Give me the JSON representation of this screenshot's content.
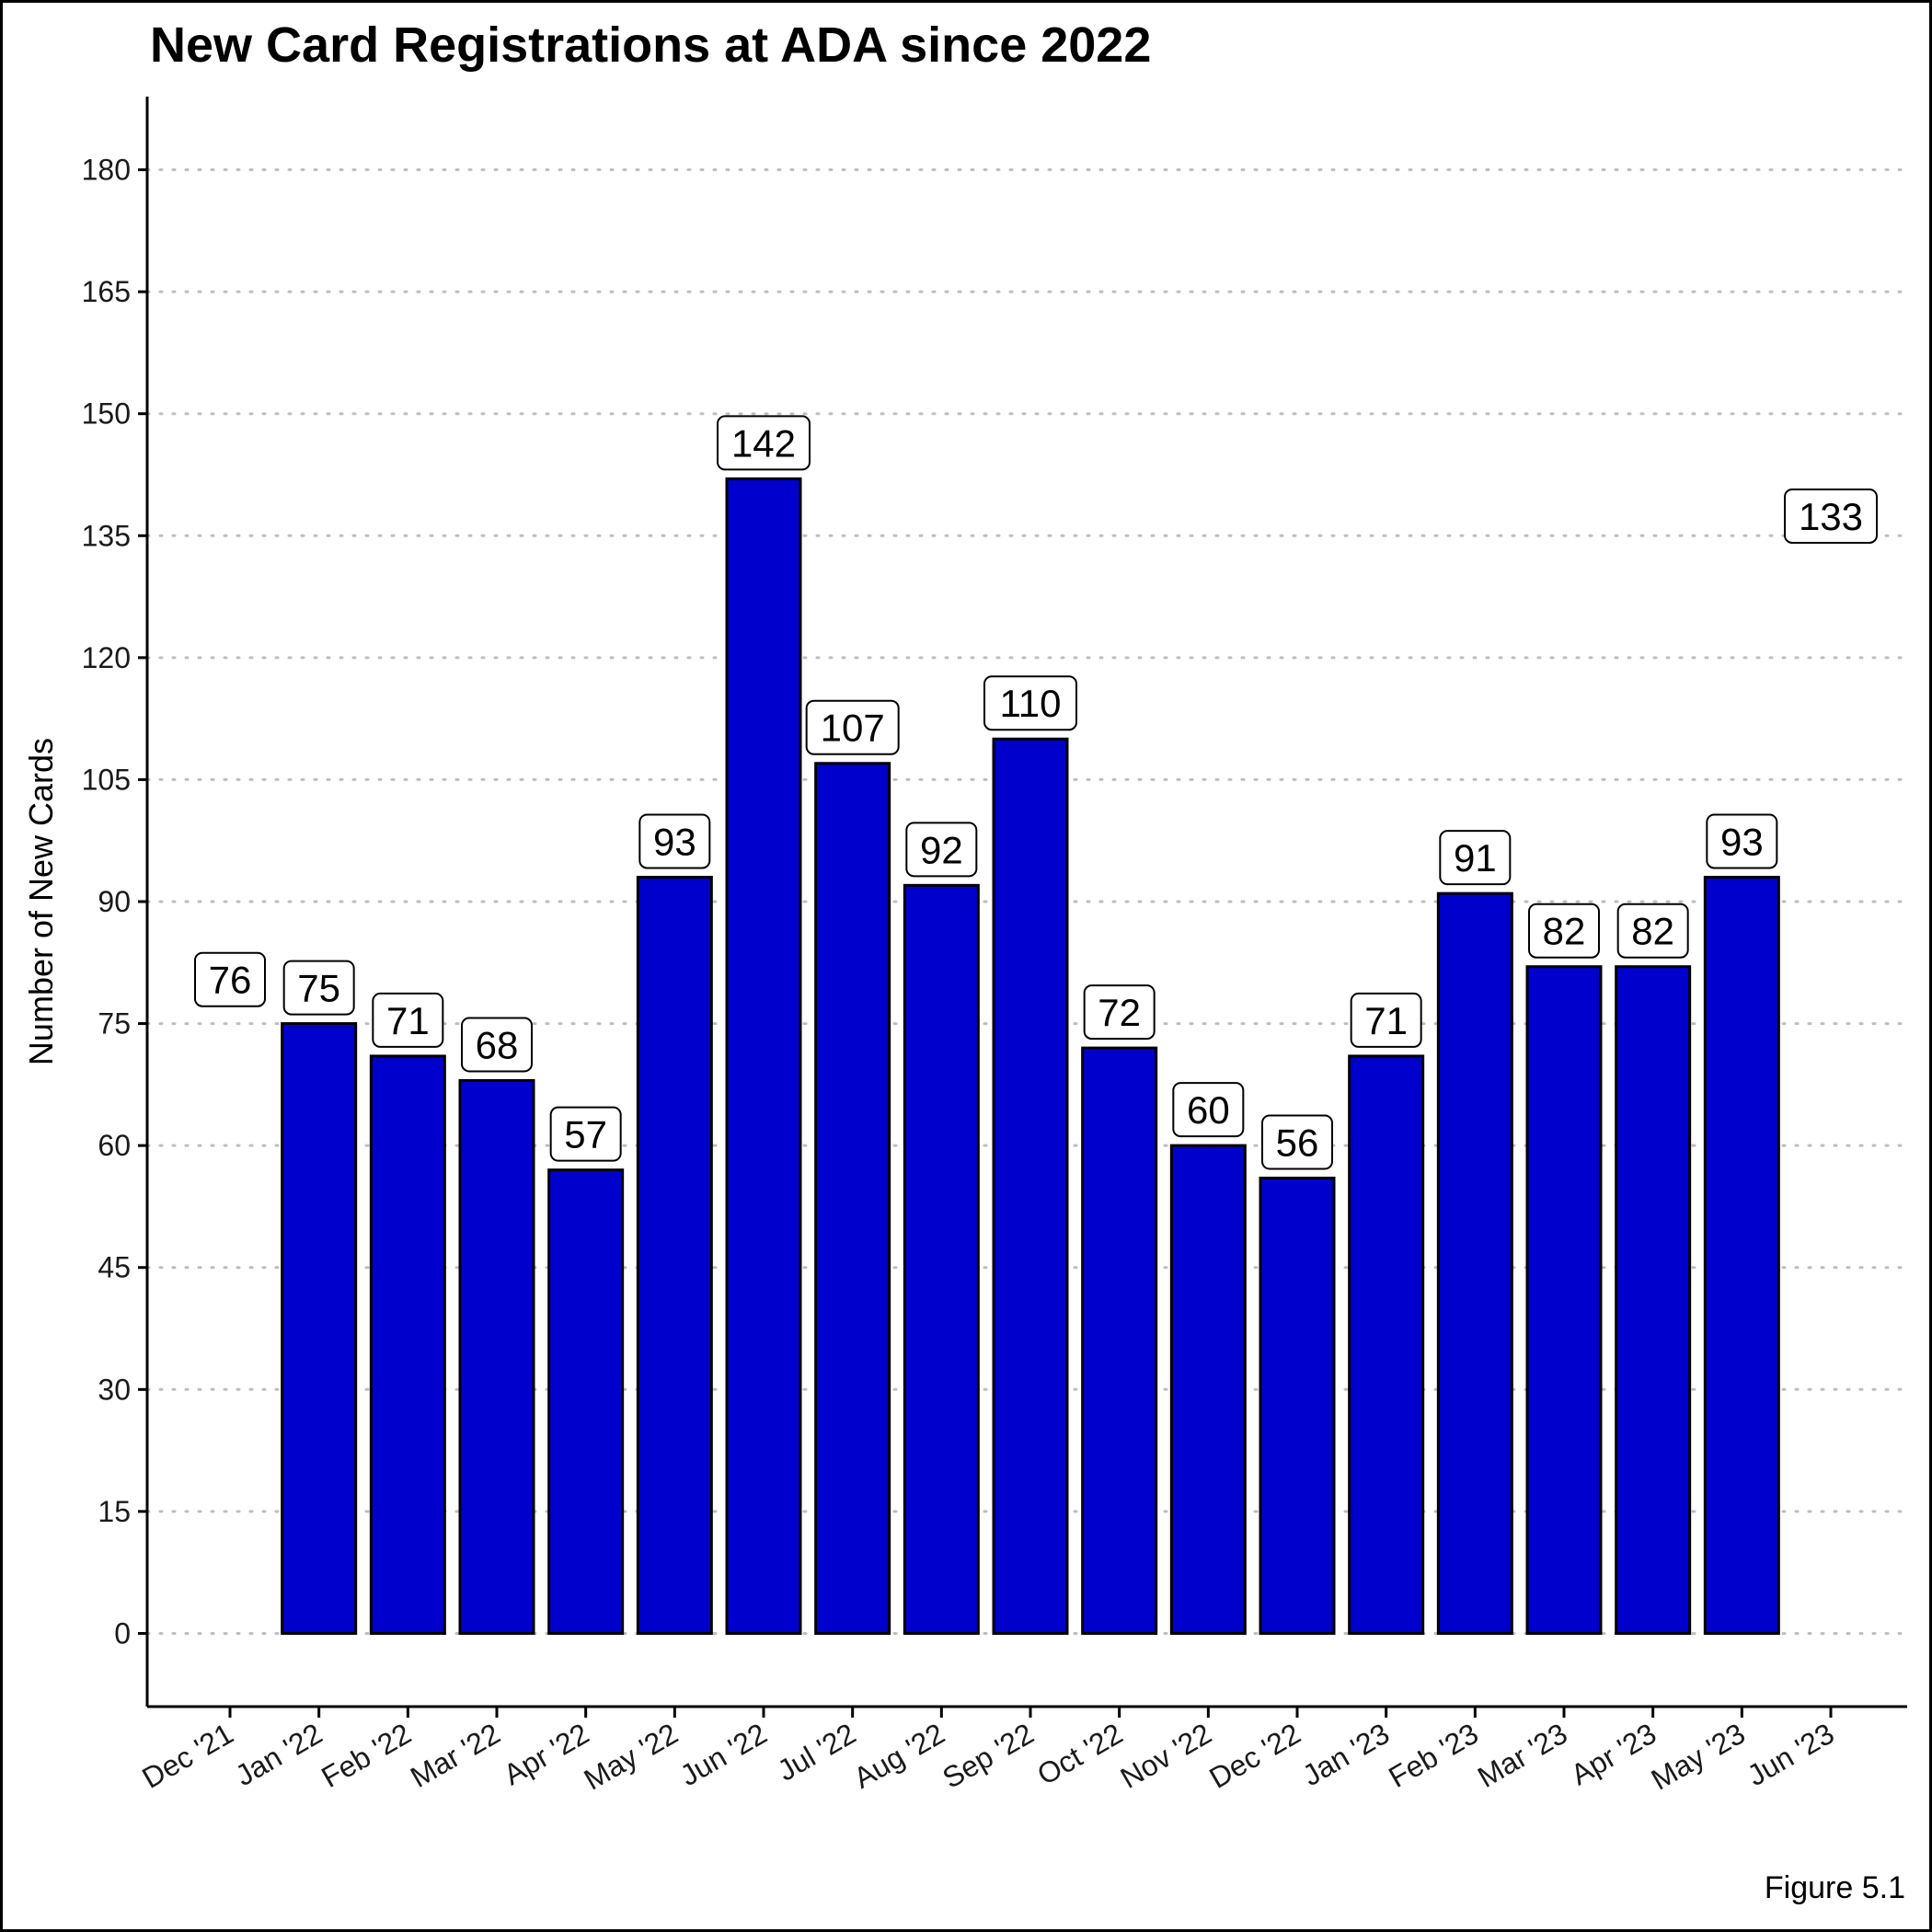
{
  "chart_data": {
    "type": "bar",
    "title": "New Card Registrations at ADA since 2022",
    "xlabel": "",
    "ylabel": "Number of New Cards",
    "caption": "Figure 5.1",
    "categories": [
      "Dec '21",
      "Jan '22",
      "Feb '22",
      "Mar '22",
      "Apr '22",
      "May '22",
      "Jun '22",
      "Jul '22",
      "Aug '22",
      "Sep '22",
      "Oct '22",
      "Nov '22",
      "Dec '22",
      "Jan '23",
      "Feb '23",
      "Mar '23",
      "Apr '23",
      "May '23",
      "Jun '23"
    ],
    "values": [
      null,
      75,
      71,
      68,
      57,
      93,
      142,
      107,
      92,
      110,
      72,
      60,
      56,
      71,
      91,
      82,
      82,
      93,
      null
    ],
    "labels": [
      "76",
      "75",
      "71",
      "68",
      "57",
      "93",
      "142",
      "107",
      "92",
      "110",
      "72",
      "60",
      "56",
      "71",
      "91",
      "82",
      "82",
      "93",
      "133"
    ],
    "y_ticks": [
      0,
      15,
      30,
      45,
      60,
      75,
      90,
      105,
      120,
      135,
      150,
      165,
      180
    ],
    "ylim": [
      -9,
      189
    ],
    "grid": "horizontal dotted",
    "legend": "none",
    "bar_color": "#0000CD",
    "bar_edge_color": "#000000",
    "grid_color": "#BEBEBE"
  }
}
